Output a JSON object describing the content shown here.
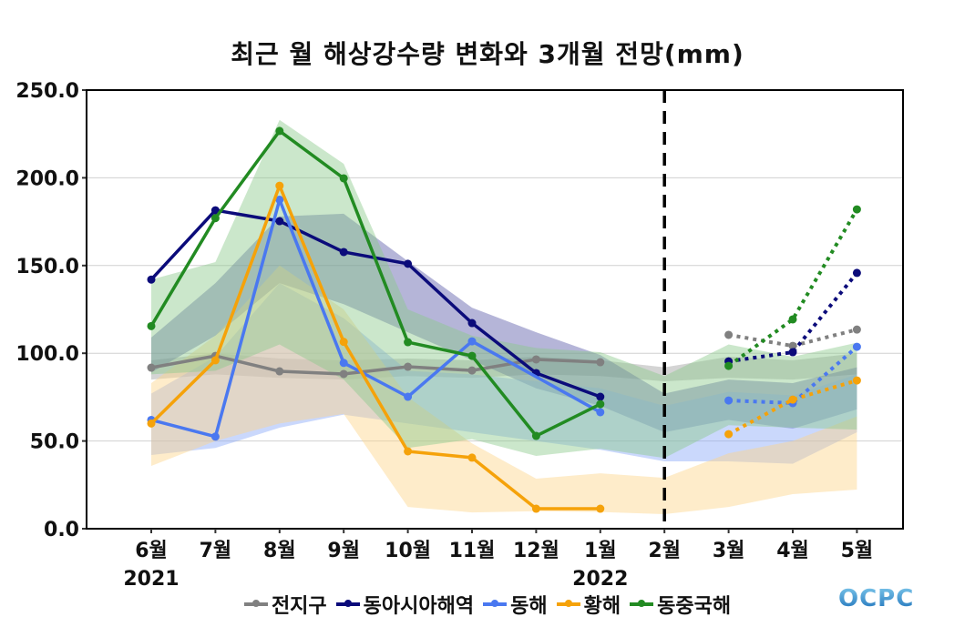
{
  "chart_data": {
    "type": "line",
    "title": "최근 월 해상강수량 변화와 3개월 전망(mm)",
    "xlabel": "",
    "ylabel": "",
    "ylim": [
      0,
      250
    ],
    "yticks": [
      "0.0",
      "50.0",
      "100.0",
      "150.0",
      "200.0",
      "250.0"
    ],
    "ytick_values": [
      0,
      50,
      100,
      150,
      200,
      250
    ],
    "grid": true,
    "categories": [
      "6월",
      "7월",
      "8월",
      "9월",
      "10월",
      "11월",
      "12월",
      "1월",
      "2월",
      "3월",
      "4월",
      "5월"
    ],
    "year_labels": [
      {
        "index": 0,
        "label": "2021"
      },
      {
        "index": 7,
        "label": "2022"
      }
    ],
    "divider_category": "2월",
    "observed_range": [
      0,
      7
    ],
    "forecast_range": [
      9,
      11
    ],
    "legend_position": "bottom",
    "series": [
      {
        "name": "전지구",
        "color": "#808080",
        "band_color": "#a0a0a0",
        "observed": [
          91.8,
          98.5,
          89.7,
          88.2,
          92.3,
          90.2,
          96.5,
          94.9,
          null,
          null,
          null,
          null
        ],
        "forecast": [
          null,
          null,
          null,
          null,
          null,
          null,
          null,
          null,
          null,
          110.5,
          104.2,
          113.5
        ],
        "band_upper": [
          96,
          100,
          97,
          96,
          97,
          96,
          98,
          96,
          92,
          98,
          96,
          100
        ],
        "band_lower": [
          85,
          88,
          86,
          85,
          87,
          86,
          88,
          87,
          84,
          86,
          85,
          88
        ]
      },
      {
        "name": "동아시아해역",
        "color": "#0b0b7a",
        "band_color": "#5a5aa8",
        "observed": [
          142.0,
          181.5,
          175.3,
          157.7,
          151.0,
          117.2,
          88.7,
          75.2,
          null,
          null,
          null,
          null
        ],
        "forecast": [
          null,
          null,
          null,
          null,
          null,
          null,
          null,
          null,
          null,
          95.4,
          100.6,
          145.8
        ],
        "band_upper": [
          109,
          140,
          178,
          179.5,
          152.5,
          126,
          112,
          99,
          77,
          85,
          83,
          92
        ],
        "band_lower": [
          89,
          110,
          140,
          128,
          112,
          96,
          80,
          70,
          55,
          62,
          57,
          68
        ]
      },
      {
        "name": "동해",
        "color": "#4a78f0",
        "band_color": "#8aa8f8",
        "observed": [
          62.0,
          52.5,
          187.5,
          94.5,
          75.2,
          106.8,
          null,
          66.4,
          null,
          null,
          null,
          null
        ],
        "forecast": [
          null,
          null,
          null,
          null,
          null,
          null,
          null,
          null,
          null,
          73.1,
          71.6,
          103.7
        ],
        "band_upper": [
          77,
          98,
          140,
          120,
          90,
          88,
          84,
          80,
          70,
          78,
          76,
          88
        ],
        "band_lower": [
          42,
          46,
          57.6,
          65,
          60,
          55,
          50,
          45,
          38.4,
          38.4,
          37,
          55
        ]
      },
      {
        "name": "황해",
        "color": "#f5a20a",
        "band_color": "#fcd48a",
        "observed": [
          60.0,
          96.0,
          195.5,
          106.5,
          44.1,
          40.5,
          11.4,
          11.4,
          null,
          null,
          null,
          null
        ],
        "forecast": [
          null,
          null,
          null,
          null,
          null,
          null,
          null,
          null,
          null,
          53.9,
          73.6,
          84.5
        ],
        "band_upper": [
          83,
          110,
          150,
          125,
          75,
          48.6,
          28.5,
          31.6,
          29,
          43,
          50,
          64
        ],
        "band_lower": [
          35.8,
          50,
          60,
          65.4,
          12.4,
          9.3,
          10,
          9.5,
          8.3,
          12.4,
          19.7,
          22.3
        ]
      },
      {
        "name": "동중국해",
        "color": "#228b22",
        "band_color": "#8cc98c",
        "observed": [
          115.5,
          177.0,
          226.7,
          199.7,
          106.3,
          98.5,
          52.9,
          71.0,
          null,
          null,
          null,
          null
        ],
        "forecast": [
          null,
          null,
          null,
          null,
          null,
          null,
          null,
          null,
          null,
          92.8,
          119.3,
          182.0
        ],
        "band_upper": [
          142,
          152,
          233,
          208,
          125,
          110,
          103,
          100.6,
          87,
          105,
          98,
          106
        ],
        "band_lower": [
          88,
          90,
          105,
          85,
          46,
          51,
          41.5,
          45.6,
          40.3,
          59,
          57.6,
          56.5
        ]
      }
    ]
  },
  "logo_text": "OCPC"
}
